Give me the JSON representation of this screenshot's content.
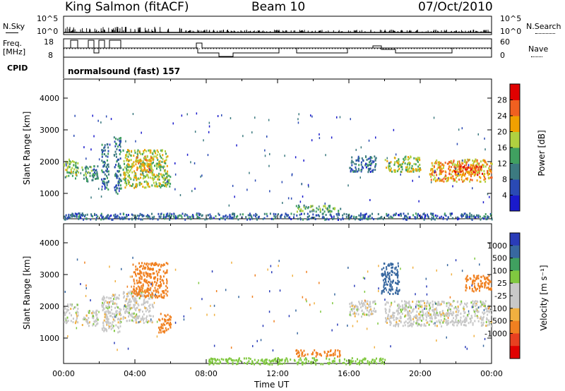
{
  "header": {
    "station": "King Salmon (fitACF)",
    "beam": "Beam 10",
    "date": "07/Oct/2010"
  },
  "strip_labels": {
    "nsky": "N.Sky",
    "freq_line1": "Freq.",
    "freq_line2": "[MHz]",
    "cpid": "CPID",
    "nsearch": "N.Search",
    "nave": "Nave",
    "nsky_ticks": [
      "10^5",
      "10^0"
    ],
    "nsearch_ticks": [
      "10^5",
      "10^0"
    ],
    "freq_ticks": [
      "18",
      "8"
    ],
    "nave_ticks": [
      "60",
      "0"
    ],
    "cpid_text": "normalsound (fast) 157"
  },
  "colors": {
    "power": [
      "#1a1acc",
      "#2a4ab4",
      "#3c7a80",
      "#40a060",
      "#b0d040",
      "#f0a000",
      "#f06020",
      "#e00000"
    ],
    "velocity": [
      "#2a3cb8",
      "#3868a0",
      "#40a060",
      "#80c840",
      "#c8c8c8",
      "#c8c8c8",
      "#f0b040",
      "#f08020",
      "#e84020",
      "#e00000"
    ]
  },
  "chart_data": [
    {
      "type": "heatmap",
      "title": "",
      "xlabel": "Time UT",
      "ylabel": "Slant Range [km]",
      "colorbar_label": "Power [dB]",
      "x_ticks": [
        "00:00",
        "04:00",
        "08:00",
        "12:00",
        "16:00",
        "20:00",
        "00:00"
      ],
      "y_ticks": [
        1000,
        2000,
        3000,
        4000
      ],
      "ylim": [
        200,
        4600
      ],
      "colorbar_ticks": [
        4,
        8,
        12,
        16,
        20,
        24,
        28
      ],
      "colorbar_range": [
        0,
        32
      ],
      "regions": [
        {
          "x": [
            0.0,
            0.8
          ],
          "y": [
            1500,
            2100
          ],
          "level": 16
        },
        {
          "x": [
            1.0,
            1.9
          ],
          "y": [
            1400,
            1900
          ],
          "level": 12
        },
        {
          "x": [
            2.1,
            2.5
          ],
          "y": [
            1100,
            2600
          ],
          "level": 10
        },
        {
          "x": [
            2.8,
            3.2
          ],
          "y": [
            1000,
            2800
          ],
          "level": 10
        },
        {
          "x": [
            3.3,
            5.8
          ],
          "y": [
            1200,
            2400
          ],
          "level": 18
        },
        {
          "x": [
            4.0,
            5.0
          ],
          "y": [
            1700,
            2200
          ],
          "level": 22
        },
        {
          "x": [
            5.5,
            6.0
          ],
          "y": [
            1200,
            1600
          ],
          "level": 16
        },
        {
          "x": [
            13.0,
            15.5
          ],
          "y": [
            450,
            650
          ],
          "level": 14
        },
        {
          "x": [
            16.0,
            17.5
          ],
          "y": [
            1700,
            2200
          ],
          "level": 8
        },
        {
          "x": [
            18.0,
            20.0
          ],
          "y": [
            1700,
            2200
          ],
          "level": 18
        },
        {
          "x": [
            20.5,
            24.0
          ],
          "y": [
            1400,
            2100
          ],
          "level": 22
        },
        {
          "x": [
            21.5,
            23.5
          ],
          "y": [
            1600,
            1900
          ],
          "level": 26
        },
        {
          "x": [
            0.0,
            24.0
          ],
          "y": [
            200,
            400
          ],
          "level": 8
        }
      ]
    },
    {
      "type": "heatmap",
      "title": "",
      "xlabel": "Time UT",
      "ylabel": "Slant Range [km]",
      "colorbar_label": "Velocity [m s^-1]",
      "x_ticks": [
        "00:00",
        "04:00",
        "08:00",
        "12:00",
        "16:00",
        "20:00",
        "00:00"
      ],
      "y_ticks": [
        1000,
        2000,
        3000,
        4000
      ],
      "ylim": [
        200,
        4600
      ],
      "colorbar_ticks": [
        "1000",
        "500",
        "100",
        "25",
        "-25",
        "-100",
        "-500",
        "-1000"
      ],
      "regions": [
        {
          "x": [
            0.0,
            0.8
          ],
          "y": [
            1500,
            2100
          ],
          "value": 0
        },
        {
          "x": [
            1.0,
            1.9
          ],
          "y": [
            1400,
            1900
          ],
          "value": 0
        },
        {
          "x": [
            2.1,
            3.2
          ],
          "y": [
            1200,
            2400
          ],
          "value": 0
        },
        {
          "x": [
            3.3,
            5.0
          ],
          "y": [
            1500,
            2500
          ],
          "value": 0
        },
        {
          "x": [
            3.8,
            5.8
          ],
          "y": [
            2300,
            3400
          ],
          "value": -300
        },
        {
          "x": [
            5.3,
            6.0
          ],
          "y": [
            1200,
            1800
          ],
          "value": -400
        },
        {
          "x": [
            13.0,
            15.5
          ],
          "y": [
            450,
            650
          ],
          "value": -200
        },
        {
          "x": [
            8.0,
            18.0
          ],
          "y": [
            200,
            400
          ],
          "value": 60
        },
        {
          "x": [
            16.0,
            17.5
          ],
          "y": [
            1700,
            2200
          ],
          "value": 0
        },
        {
          "x": [
            17.8,
            18.8
          ],
          "y": [
            2400,
            3400
          ],
          "value": 300
        },
        {
          "x": [
            18.0,
            24.0
          ],
          "y": [
            1400,
            2200
          ],
          "value": 0
        },
        {
          "x": [
            22.5,
            24.0
          ],
          "y": [
            2500,
            3000
          ],
          "value": -200
        }
      ]
    }
  ]
}
